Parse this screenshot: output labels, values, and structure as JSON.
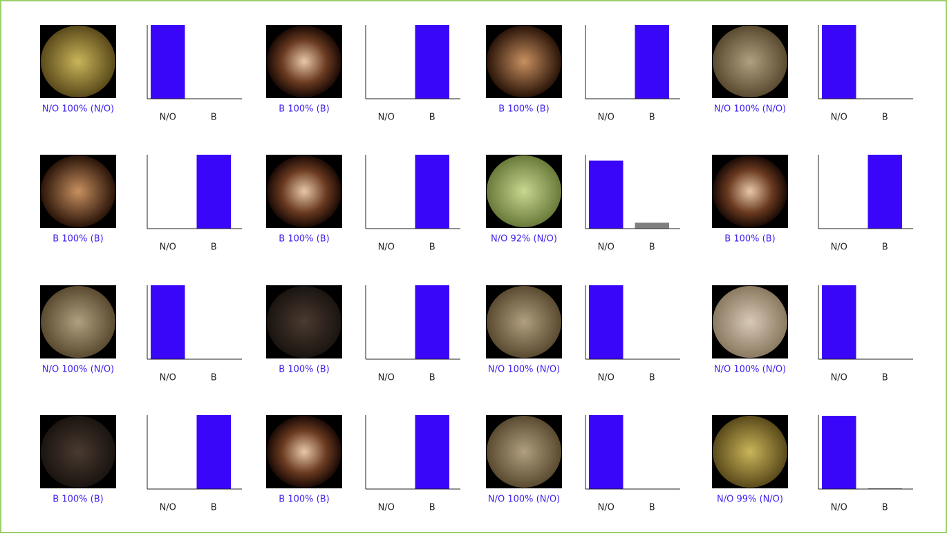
{
  "chart_data": [
    {
      "type": "bar",
      "caption": "N/O 100% (N/O)",
      "categories": [
        "N/O",
        "B"
      ],
      "values": [
        100,
        0
      ],
      "colors": [
        "#3a06fa",
        "#808080"
      ],
      "ylim": [
        0,
        100
      ]
    },
    {
      "type": "bar",
      "caption": "B 100% (B)",
      "categories": [
        "N/O",
        "B"
      ],
      "values": [
        0,
        100
      ],
      "colors": [
        "#808080",
        "#3a06fa"
      ],
      "ylim": [
        0,
        100
      ]
    },
    {
      "type": "bar",
      "caption": "B 100% (B)",
      "categories": [
        "N/O",
        "B"
      ],
      "values": [
        0,
        100
      ],
      "colors": [
        "#808080",
        "#3a06fa"
      ],
      "ylim": [
        0,
        100
      ]
    },
    {
      "type": "bar",
      "caption": "N/O 100% (N/O)",
      "categories": [
        "N/O",
        "B"
      ],
      "values": [
        100,
        0
      ],
      "colors": [
        "#3a06fa",
        "#808080"
      ],
      "ylim": [
        0,
        100
      ]
    },
    {
      "type": "bar",
      "caption": "B 100% (B)",
      "categories": [
        "N/O",
        "B"
      ],
      "values": [
        0,
        100
      ],
      "colors": [
        "#808080",
        "#3a06fa"
      ],
      "ylim": [
        0,
        100
      ]
    },
    {
      "type": "bar",
      "caption": "B 100% (B)",
      "categories": [
        "N/O",
        "B"
      ],
      "values": [
        0,
        100
      ],
      "colors": [
        "#808080",
        "#3a06fa"
      ],
      "ylim": [
        0,
        100
      ]
    },
    {
      "type": "bar",
      "caption": "N/O 92% (N/O)",
      "categories": [
        "N/O",
        "B"
      ],
      "values": [
        92,
        8
      ],
      "colors": [
        "#3a06fa",
        "#808080"
      ],
      "ylim": [
        0,
        100
      ]
    },
    {
      "type": "bar",
      "caption": "B 100% (B)",
      "categories": [
        "N/O",
        "B"
      ],
      "values": [
        0,
        100
      ],
      "colors": [
        "#808080",
        "#3a06fa"
      ],
      "ylim": [
        0,
        100
      ]
    },
    {
      "type": "bar",
      "caption": "N/O 100% (N/O)",
      "categories": [
        "N/O",
        "B"
      ],
      "values": [
        100,
        0
      ],
      "colors": [
        "#3a06fa",
        "#808080"
      ],
      "ylim": [
        0,
        100
      ]
    },
    {
      "type": "bar",
      "caption": "B 100% (B)",
      "categories": [
        "N/O",
        "B"
      ],
      "values": [
        0,
        100
      ],
      "colors": [
        "#808080",
        "#3a06fa"
      ],
      "ylim": [
        0,
        100
      ]
    },
    {
      "type": "bar",
      "caption": "N/O 100% (N/O)",
      "categories": [
        "N/O",
        "B"
      ],
      "values": [
        100,
        0
      ],
      "colors": [
        "#3a06fa",
        "#808080"
      ],
      "ylim": [
        0,
        100
      ]
    },
    {
      "type": "bar",
      "caption": "N/O 100% (N/O)",
      "categories": [
        "N/O",
        "B"
      ],
      "values": [
        100,
        0
      ],
      "colors": [
        "#3a06fa",
        "#808080"
      ],
      "ylim": [
        0,
        100
      ]
    },
    {
      "type": "bar",
      "caption": "B 100% (B)",
      "categories": [
        "N/O",
        "B"
      ],
      "values": [
        0,
        100
      ],
      "colors": [
        "#808080",
        "#3a06fa"
      ],
      "ylim": [
        0,
        100
      ]
    },
    {
      "type": "bar",
      "caption": "B 100% (B)",
      "categories": [
        "N/O",
        "B"
      ],
      "values": [
        0,
        100
      ],
      "colors": [
        "#808080",
        "#3a06fa"
      ],
      "ylim": [
        0,
        100
      ]
    },
    {
      "type": "bar",
      "caption": "N/O 100% (N/O)",
      "categories": [
        "N/O",
        "B"
      ],
      "values": [
        100,
        0
      ],
      "colors": [
        "#3a06fa",
        "#808080"
      ],
      "ylim": [
        0,
        100
      ]
    },
    {
      "type": "bar",
      "caption": "N/O 99% (N/O)",
      "categories": [
        "N/O",
        "B"
      ],
      "values": [
        99,
        1
      ],
      "colors": [
        "#3a06fa",
        "#808080"
      ],
      "ylim": [
        0,
        100
      ]
    }
  ]
}
